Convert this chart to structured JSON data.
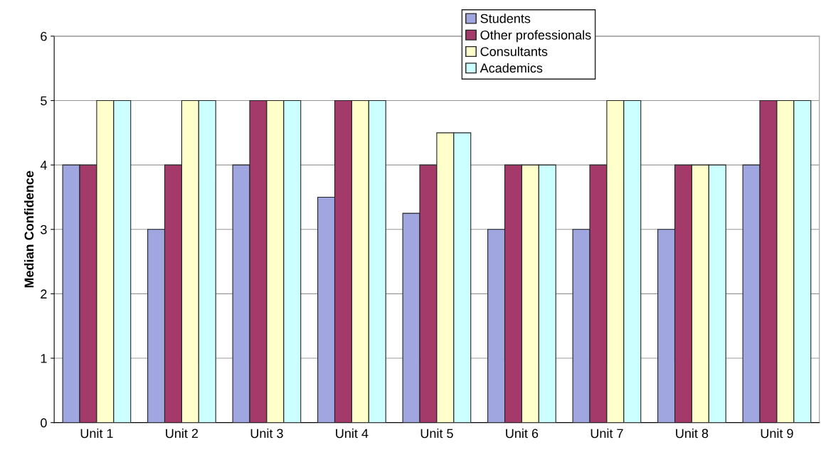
{
  "chart_data": {
    "type": "bar",
    "ylabel": "Median Confidence",
    "categories": [
      "Unit 1",
      "Unit 2",
      "Unit 3",
      "Unit 4",
      "Unit 5",
      "Unit 6",
      "Unit 7",
      "Unit 8",
      "Unit 9"
    ],
    "series": [
      {
        "name": "Students",
        "color": "#9fa6e0",
        "values": [
          4,
          3,
          4,
          3.5,
          3.25,
          3,
          3,
          3,
          4
        ]
      },
      {
        "name": "Other professionals",
        "color": "#a33a6a",
        "values": [
          4,
          4,
          5,
          5,
          4,
          4,
          4,
          4,
          5
        ]
      },
      {
        "name": "Consultants",
        "color": "#ffffcc",
        "values": [
          5,
          5,
          5,
          5,
          4.5,
          4,
          5,
          4,
          5
        ]
      },
      {
        "name": "Academics",
        "color": "#ccffff",
        "values": [
          5,
          5,
          5,
          5,
          4.5,
          4,
          5,
          4,
          5
        ]
      }
    ],
    "ylim": [
      0,
      6
    ],
    "yticks": [
      0,
      1,
      2,
      3,
      4,
      5,
      6
    ],
    "grid": "y",
    "legend": "top"
  }
}
